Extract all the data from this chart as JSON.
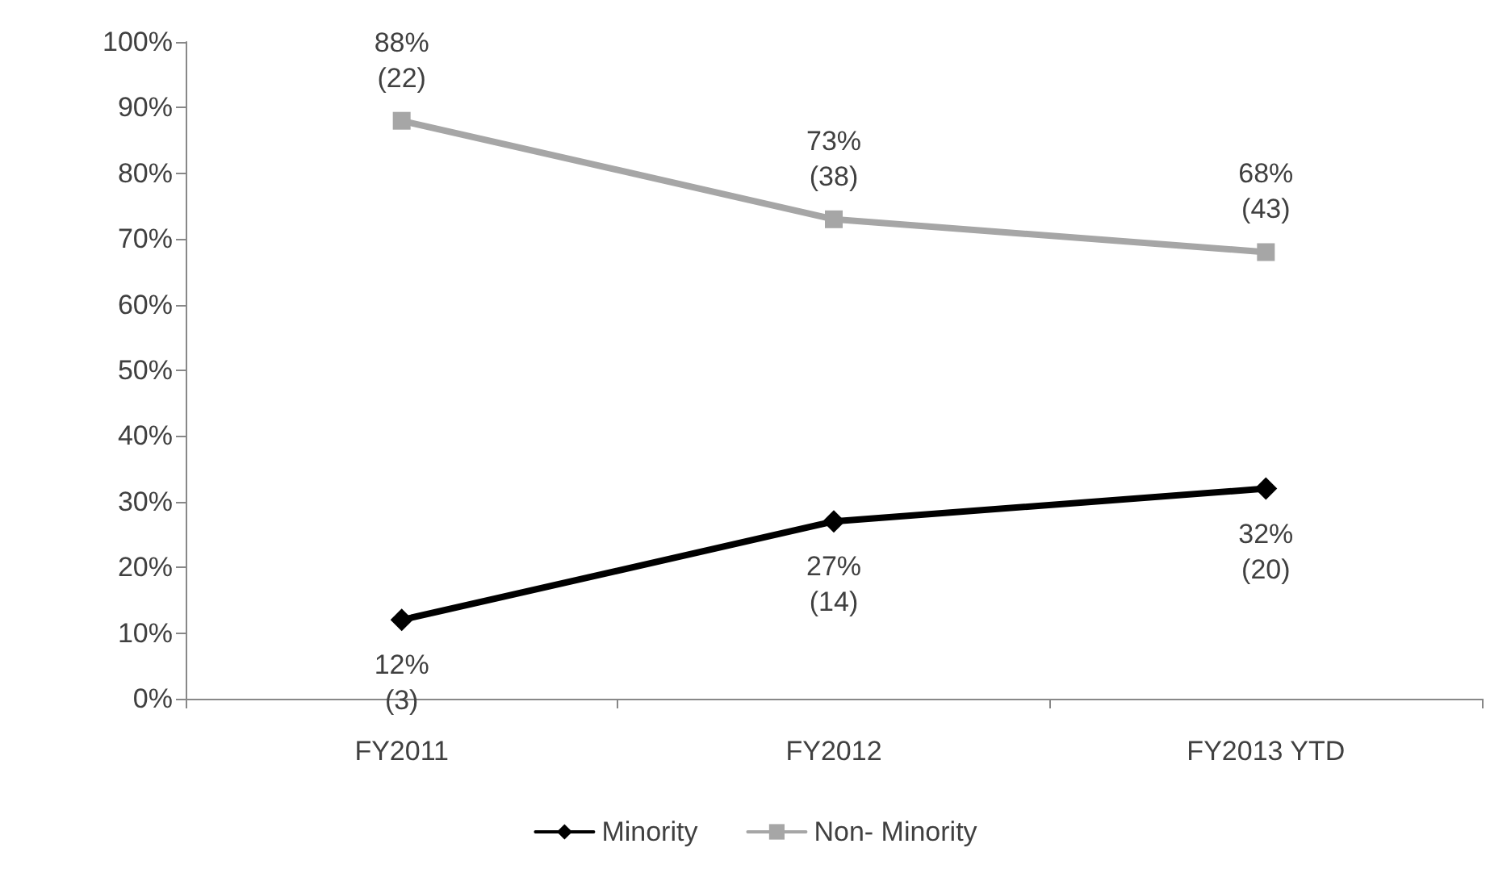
{
  "chart_data": {
    "type": "line",
    "categories": [
      "FY2011",
      "FY2012",
      "FY2013 YTD"
    ],
    "series": [
      {
        "name": "Minority",
        "color": "#000000",
        "marker": "diamond",
        "values": [
          12,
          27,
          32
        ],
        "value_labels": [
          "12%\n(3)",
          "27%\n(14)",
          "32%\n(20)"
        ]
      },
      {
        "name": "Non- Minority",
        "color": "#a6a6a6",
        "marker": "square",
        "values": [
          88,
          73,
          68
        ],
        "value_labels": [
          "88%\n(22)",
          "73%\n(38)",
          "68%\n(43)"
        ]
      }
    ],
    "ylim": [
      0,
      100
    ],
    "yticks": [
      {
        "value": 0,
        "label": "0%"
      },
      {
        "value": 10,
        "label": "10%"
      },
      {
        "value": 20,
        "label": "20%"
      },
      {
        "value": 30,
        "label": "30%"
      },
      {
        "value": 40,
        "label": "40%"
      },
      {
        "value": 50,
        "label": "50%"
      },
      {
        "value": 60,
        "label": "60%"
      },
      {
        "value": 70,
        "label": "70%"
      },
      {
        "value": 80,
        "label": "80%"
      },
      {
        "value": 90,
        "label": "90%"
      },
      {
        "value": 100,
        "label": "100%"
      }
    ],
    "grid": false,
    "legend": "bottom",
    "line_style": "solid"
  }
}
